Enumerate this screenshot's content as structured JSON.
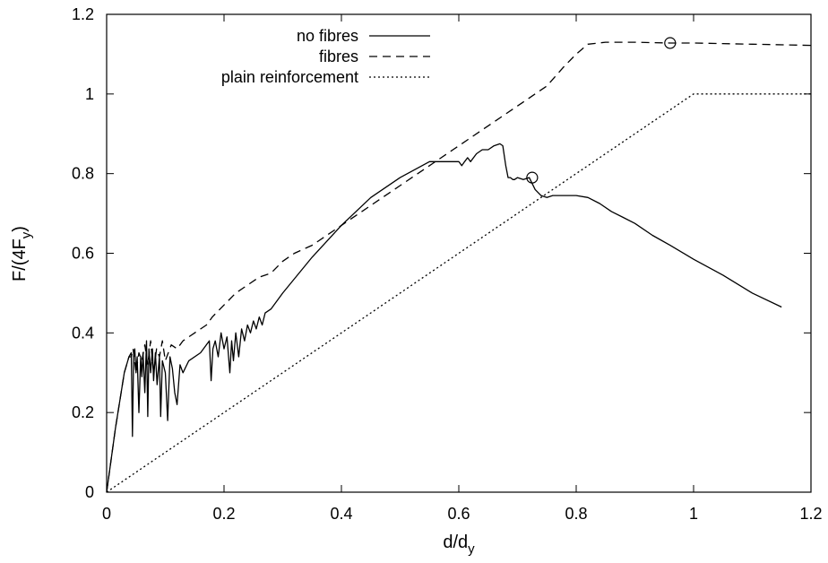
{
  "chart_data": {
    "type": "line",
    "xlabel": {
      "main": "d/d",
      "sub": "y"
    },
    "ylabel": {
      "main": "F/(4F",
      "sub": "y",
      "end": ")"
    },
    "xlim": [
      0,
      1.2
    ],
    "ylim": [
      0,
      1.2
    ],
    "x_ticks": [
      {
        "value": 0,
        "label": "0"
      },
      {
        "value": 0.2,
        "label": "0.2"
      },
      {
        "value": 0.4,
        "label": "0.4"
      },
      {
        "value": 0.6,
        "label": "0.6"
      },
      {
        "value": 0.8,
        "label": "0.8"
      },
      {
        "value": 1.0,
        "label": "1"
      },
      {
        "value": 1.2,
        "label": "1.2"
      }
    ],
    "y_ticks": [
      {
        "value": 0,
        "label": "0"
      },
      {
        "value": 0.2,
        "label": "0.2"
      },
      {
        "value": 0.4,
        "label": "0.4"
      },
      {
        "value": 0.6,
        "label": "0.6"
      },
      {
        "value": 0.8,
        "label": "0.8"
      },
      {
        "value": 1.0,
        "label": "1"
      },
      {
        "value": 1.2,
        "label": "1.2"
      }
    ],
    "grid": false,
    "legend_position": "top-left",
    "series": [
      {
        "name": "no fibres",
        "style": "solid",
        "color": "#000000",
        "x": [
          0,
          0.015,
          0.03,
          0.038,
          0.042,
          0.044,
          0.046,
          0.048,
          0.05,
          0.052,
          0.055,
          0.058,
          0.06,
          0.062,
          0.065,
          0.068,
          0.07,
          0.072,
          0.075,
          0.078,
          0.08,
          0.083,
          0.086,
          0.09,
          0.092,
          0.095,
          0.1,
          0.104,
          0.108,
          0.112,
          0.116,
          0.12,
          0.125,
          0.13,
          0.14,
          0.16,
          0.175,
          0.178,
          0.181,
          0.185,
          0.19,
          0.195,
          0.2,
          0.205,
          0.21,
          0.213,
          0.216,
          0.22,
          0.225,
          0.23,
          0.235,
          0.24,
          0.245,
          0.25,
          0.255,
          0.26,
          0.265,
          0.27,
          0.28,
          0.3,
          0.35,
          0.4,
          0.45,
          0.5,
          0.55,
          0.6,
          0.605,
          0.61,
          0.615,
          0.62,
          0.63,
          0.64,
          0.65,
          0.66,
          0.67,
          0.675,
          0.68,
          0.684,
          0.688,
          0.692,
          0.695,
          0.7,
          0.71,
          0.72,
          0.73,
          0.74,
          0.75,
          0.76,
          0.78,
          0.8,
          0.82,
          0.84,
          0.86,
          0.88,
          0.9,
          0.93,
          0.96,
          1.0,
          1.05,
          1.1,
          1.15
        ],
        "y": [
          0,
          0.16,
          0.3,
          0.34,
          0.35,
          0.14,
          0.34,
          0.36,
          0.3,
          0.34,
          0.2,
          0.34,
          0.29,
          0.35,
          0.25,
          0.38,
          0.19,
          0.36,
          0.3,
          0.36,
          0.28,
          0.35,
          0.27,
          0.34,
          0.19,
          0.33,
          0.3,
          0.18,
          0.34,
          0.31,
          0.25,
          0.22,
          0.32,
          0.3,
          0.33,
          0.35,
          0.38,
          0.28,
          0.36,
          0.38,
          0.34,
          0.4,
          0.36,
          0.39,
          0.3,
          0.38,
          0.33,
          0.4,
          0.34,
          0.41,
          0.38,
          0.42,
          0.4,
          0.43,
          0.41,
          0.44,
          0.42,
          0.45,
          0.46,
          0.5,
          0.59,
          0.67,
          0.74,
          0.79,
          0.83,
          0.83,
          0.82,
          0.83,
          0.84,
          0.83,
          0.85,
          0.86,
          0.86,
          0.87,
          0.875,
          0.87,
          0.82,
          0.79,
          0.79,
          0.785,
          0.785,
          0.79,
          0.785,
          0.79,
          0.76,
          0.745,
          0.74,
          0.745,
          0.745,
          0.745,
          0.74,
          0.725,
          0.705,
          0.69,
          0.675,
          0.645,
          0.62,
          0.585,
          0.545,
          0.5,
          0.465
        ]
      },
      {
        "name": "fibres",
        "style": "dashed",
        "color": "#000000",
        "x": [
          0,
          0.015,
          0.03,
          0.038,
          0.042,
          0.045,
          0.05,
          0.055,
          0.06,
          0.065,
          0.07,
          0.075,
          0.08,
          0.085,
          0.09,
          0.095,
          0.1,
          0.11,
          0.12,
          0.13,
          0.15,
          0.17,
          0.18,
          0.2,
          0.22,
          0.24,
          0.26,
          0.28,
          0.3,
          0.32,
          0.35,
          0.4,
          0.5,
          0.6,
          0.7,
          0.75,
          0.78,
          0.8,
          0.82,
          0.85,
          0.9,
          0.96,
          1.0,
          1.1,
          1.2
        ],
        "y": [
          0,
          0.16,
          0.3,
          0.34,
          0.34,
          0.36,
          0.3,
          0.35,
          0.33,
          0.37,
          0.32,
          0.38,
          0.3,
          0.36,
          0.34,
          0.38,
          0.33,
          0.37,
          0.36,
          0.38,
          0.4,
          0.42,
          0.44,
          0.47,
          0.5,
          0.52,
          0.54,
          0.55,
          0.58,
          0.6,
          0.62,
          0.67,
          0.77,
          0.87,
          0.97,
          1.02,
          1.07,
          1.1,
          1.125,
          1.13,
          1.13,
          1.128,
          1.128,
          1.125,
          1.122
        ]
      },
      {
        "name": "plain reinforcement",
        "style": "dotted",
        "color": "#000000",
        "x": [
          0,
          1.0,
          1.2
        ],
        "y": [
          0,
          1.0,
          1.0
        ]
      }
    ],
    "markers": [
      {
        "series": "no fibres",
        "shape": "circle",
        "x": 0.725,
        "y": 0.79
      },
      {
        "series": "fibres",
        "shape": "circle",
        "x": 0.96,
        "y": 1.128
      }
    ]
  }
}
